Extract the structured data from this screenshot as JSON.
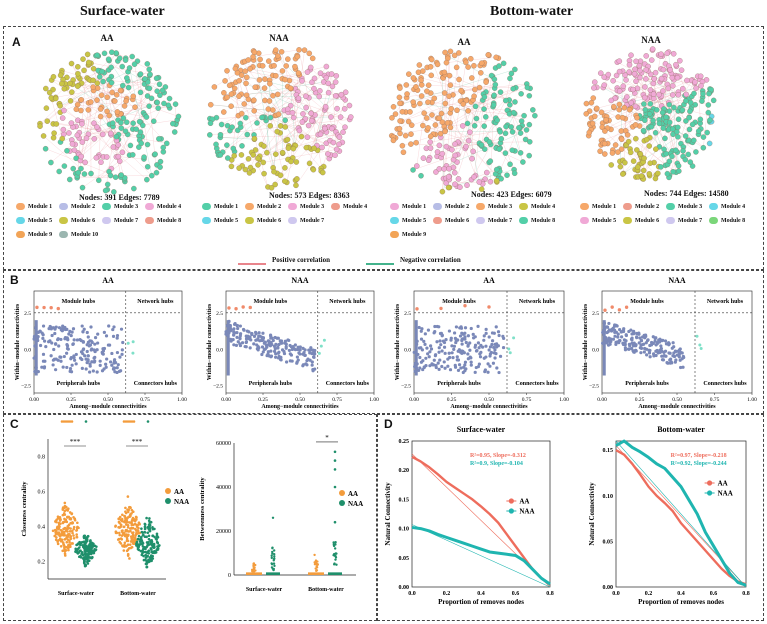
{
  "headers": {
    "surface": "Surface-water",
    "bottom": "Bottom-water"
  },
  "panel_labels": {
    "a": "A",
    "b": "B",
    "c": "C",
    "d": "D"
  },
  "colors": {
    "m1": "#f6a86a",
    "m2": "#b7bde6",
    "m3": "#53cfa8",
    "m4": "#f0a9d6",
    "m5": "#66d7e8",
    "m6": "#c9c545",
    "m7": "#cfc8ef",
    "m8": "#ee9c8c",
    "m9": "#f2a457",
    "m10": "#9bb6b0",
    "pos": "#e8848b",
    "neg": "#43b38c",
    "aa": "#f39c3c",
    "naa": "#1f8f6b",
    "aaD": "#ee6d5d",
    "naaD": "#1fb5b0",
    "zi": "#7a88b8"
  },
  "networks": [
    {
      "title": "AA",
      "stats": "Nodes: 391   Edges: 7789",
      "legend": [
        "Module 1",
        "Module 2",
        "Module 3",
        "Module 4",
        "Module 5",
        "Module 6",
        "Module 7",
        "Module 8",
        "Module 9",
        "Module 10"
      ],
      "legend_colors": [
        "#f6a86a",
        "#b7bde6",
        "#53cfa8",
        "#f0a9d6",
        "#66d7e8",
        "#c9c545",
        "#cfc8ef",
        "#ee9c8c",
        "#f2a457",
        "#9bb6b0"
      ]
    },
    {
      "title": "NAA",
      "stats": "Nodes: 573   Edges: 8363",
      "legend": [
        "Module 1",
        "Module 2",
        "Module 3",
        "Module 4",
        "Module 5",
        "Module 6",
        "Module 7"
      ],
      "legend_colors": [
        "#53cfa8",
        "#f6a86a",
        "#f0a9d6",
        "#ee9c8c",
        "#66d7e8",
        "#c9c545",
        "#cfc8ef"
      ]
    },
    {
      "title": "AA",
      "stats": "Nodes: 423   Edges: 6079",
      "legend": [
        "Module 1",
        "Module 2",
        "Module 3",
        "Module 4",
        "Module 5",
        "Module 6",
        "Module 7",
        "Module 8",
        "Module 9"
      ],
      "legend_colors": [
        "#f0a9d6",
        "#b7bde6",
        "#f6a86a",
        "#c9c545",
        "#66d7e8",
        "#ee9c8c",
        "#cfc8ef",
        "#53cfa8",
        "#f2a457"
      ]
    },
    {
      "title": "NAA",
      "stats": "Nodes: 744   Edges: 14580",
      "legend": [
        "Module 1",
        "Module 2",
        "Module 3",
        "Module 4",
        "Module 5",
        "Module 6",
        "Module 7",
        "Module 8"
      ],
      "legend_colors": [
        "#f6a86a",
        "#ee9c8c",
        "#53cfa8",
        "#66d7e8",
        "#f0a9d6",
        "#c9c545",
        "#cfc8ef",
        "#7bd67a"
      ]
    }
  ],
  "correlation_legend": {
    "positive": "Positive correlation",
    "negative": "Negative correlation"
  },
  "zipi": {
    "titles": [
      "AA",
      "NAA",
      "AA",
      "NAA"
    ],
    "module_hubs": "Module hubs",
    "network_hubs": "Network hubs",
    "peripherals": "Peripherals hubs",
    "connectors": "Connectors hubs",
    "xlabel": "Among−module connectivities",
    "ylabel": "Within−module connectivities",
    "xticks": [
      "0.00",
      "0.25",
      "0.50",
      "0.75",
      "1.00"
    ],
    "yticks": [
      "2.5",
      "0.0",
      "−2.5"
    ],
    "xlim": [
      0,
      1
    ],
    "ylim": [
      -3,
      4
    ],
    "zi_threshold": 2.5,
    "pi_threshold": 0.62
  },
  "panel_c": {
    "closeness": {
      "ylabel": "Closeness centrality",
      "yticks": [
        "0.8",
        "0.6",
        "0.4",
        "0.2"
      ],
      "xticks": [
        "Surface-water",
        "Bottom-water"
      ],
      "sig": [
        "***",
        "***"
      ],
      "ylim": [
        0.1,
        0.9
      ]
    },
    "betweenness": {
      "ylabel": "Betweenness centrality",
      "yticks": [
        "60000",
        "40000",
        "20000",
        "0"
      ],
      "xticks": [
        "Surface-water",
        "Bottom-water"
      ],
      "sig": [
        "*"
      ],
      "ylim": [
        0,
        60000
      ]
    },
    "legend": [
      "AA",
      "NAA"
    ]
  },
  "chart_data": [
    {
      "type": "line",
      "title": "Surface-water",
      "xlabel": "Proportion of removes nodes",
      "ylabel": "Natural Connectivity",
      "xlim": [
        0,
        0.8
      ],
      "ylim": [
        0,
        0.25
      ],
      "xticks": [
        "0.0",
        "0.2",
        "0.4",
        "0.6",
        "0.8"
      ],
      "yticks": [
        "0.00",
        "0.05",
        "0.10",
        "0.15",
        "0.20",
        "0.25"
      ],
      "annotations": [
        "R²=0.95,  Slope=-0.312",
        "R²=0.9,  Slope=-0.104"
      ],
      "series": [
        {
          "name": "AA",
          "x": [
            0,
            0.05,
            0.1,
            0.15,
            0.2,
            0.25,
            0.3,
            0.35,
            0.4,
            0.45,
            0.5,
            0.55,
            0.6,
            0.65,
            0.7,
            0.75,
            0.8
          ],
          "values": [
            0.223,
            0.215,
            0.205,
            0.193,
            0.18,
            0.17,
            0.16,
            0.15,
            0.138,
            0.125,
            0.11,
            0.09,
            0.07,
            0.05,
            0.03,
            0.015,
            0.005
          ]
        },
        {
          "name": "NAA",
          "x": [
            0,
            0.05,
            0.1,
            0.15,
            0.2,
            0.25,
            0.3,
            0.35,
            0.4,
            0.45,
            0.5,
            0.55,
            0.6,
            0.65,
            0.7,
            0.75,
            0.8
          ],
          "values": [
            0.102,
            0.1,
            0.096,
            0.09,
            0.085,
            0.08,
            0.075,
            0.07,
            0.065,
            0.06,
            0.058,
            0.056,
            0.054,
            0.045,
            0.03,
            0.015,
            0.005
          ]
        }
      ]
    },
    {
      "type": "line",
      "title": "Bottom-water",
      "xlabel": "Proportion of removes nodes",
      "ylabel": "Natural Connectivity",
      "xlim": [
        0,
        0.8
      ],
      "ylim": [
        0,
        0.16
      ],
      "xticks": [
        "0.0",
        "0.2",
        "0.4",
        "0.6",
        "0.8"
      ],
      "yticks": [
        "0.00",
        "0.05",
        "0.10",
        "0.15"
      ],
      "annotations": [
        "R²=0.97,  Slope=-0.218",
        "R²=0.92,  Slope=-0.244"
      ],
      "series": [
        {
          "name": "AA",
          "x": [
            0,
            0.05,
            0.1,
            0.15,
            0.2,
            0.25,
            0.3,
            0.35,
            0.4,
            0.45,
            0.5,
            0.55,
            0.6,
            0.65,
            0.7,
            0.75,
            0.8
          ],
          "values": [
            0.15,
            0.145,
            0.135,
            0.123,
            0.11,
            0.1,
            0.092,
            0.083,
            0.07,
            0.06,
            0.05,
            0.04,
            0.03,
            0.02,
            0.012,
            0.006,
            0.003
          ]
        },
        {
          "name": "NAA",
          "x": [
            0,
            0.05,
            0.1,
            0.15,
            0.2,
            0.25,
            0.3,
            0.35,
            0.4,
            0.45,
            0.5,
            0.55,
            0.6,
            0.65,
            0.7,
            0.75,
            0.8
          ],
          "values": [
            0.155,
            0.16,
            0.153,
            0.148,
            0.142,
            0.135,
            0.13,
            0.12,
            0.11,
            0.095,
            0.08,
            0.06,
            0.045,
            0.03,
            0.015,
            0.005,
            0.002
          ]
        }
      ]
    }
  ]
}
